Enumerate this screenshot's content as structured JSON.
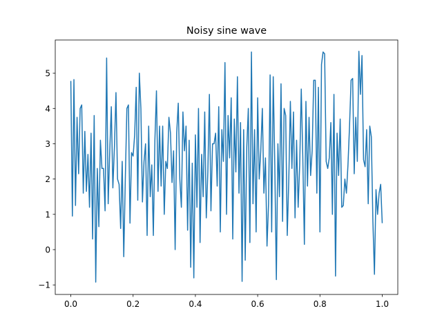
{
  "chart_data": {
    "type": "line",
    "title": "Noisy sine wave",
    "color": "#1f77b4",
    "x": [
      0,
      0.005,
      0.01,
      0.015,
      0.02,
      0.025,
      0.03,
      0.035,
      0.04,
      0.045,
      0.05,
      0.055,
      0.06,
      0.065,
      0.07,
      0.075,
      0.08,
      0.085,
      0.09,
      0.095,
      0.1,
      0.105,
      0.11,
      0.115,
      0.12,
      0.125,
      0.13,
      0.135,
      0.14,
      0.145,
      0.15,
      0.155,
      0.16,
      0.165,
      0.17,
      0.175,
      0.18,
      0.185,
      0.19,
      0.195,
      0.2,
      0.205,
      0.21,
      0.215,
      0.22,
      0.225,
      0.23,
      0.235,
      0.24,
      0.245,
      0.25,
      0.255,
      0.26,
      0.265,
      0.27,
      0.275,
      0.28,
      0.285,
      0.29,
      0.295,
      0.3,
      0.305,
      0.31,
      0.315,
      0.32,
      0.325,
      0.33,
      0.335,
      0.34,
      0.345,
      0.35,
      0.355,
      0.36,
      0.365,
      0.37,
      0.375,
      0.38,
      0.385,
      0.39,
      0.395,
      0.4,
      0.405,
      0.41,
      0.415,
      0.42,
      0.425,
      0.43,
      0.435,
      0.44,
      0.445,
      0.45,
      0.455,
      0.46,
      0.465,
      0.47,
      0.475,
      0.48,
      0.485,
      0.49,
      0.495,
      0.5,
      0.505,
      0.51,
      0.515,
      0.52,
      0.525,
      0.53,
      0.535,
      0.54,
      0.545,
      0.55,
      0.555,
      0.56,
      0.565,
      0.57,
      0.575,
      0.58,
      0.585,
      0.59,
      0.595,
      0.6,
      0.605,
      0.61,
      0.615,
      0.62,
      0.625,
      0.63,
      0.635,
      0.64,
      0.645,
      0.65,
      0.655,
      0.66,
      0.665,
      0.67,
      0.675,
      0.68,
      0.685,
      0.69,
      0.695,
      0.7,
      0.705,
      0.71,
      0.715,
      0.72,
      0.725,
      0.73,
      0.735,
      0.74,
      0.745,
      0.75,
      0.755,
      0.76,
      0.765,
      0.77,
      0.775,
      0.78,
      0.785,
      0.79,
      0.795,
      0.8,
      0.805,
      0.81,
      0.815,
      0.82,
      0.825,
      0.83,
      0.835,
      0.84,
      0.845,
      0.85,
      0.855,
      0.86,
      0.865,
      0.87,
      0.875,
      0.88,
      0.885,
      0.89,
      0.895,
      0.9,
      0.905,
      0.91,
      0.915,
      0.92,
      0.925,
      0.93,
      0.935,
      0.94,
      0.945,
      0.95,
      0.955,
      0.96,
      0.965,
      0.97,
      0.975,
      0.98,
      0.985,
      0.99,
      0.995,
      1
    ],
    "values": [
      4.78,
      0.95,
      4.82,
      1.25,
      3.75,
      2.15,
      4.0,
      4.1,
      1.6,
      3.35,
      1.65,
      2.7,
      1.2,
      3.3,
      0.3,
      3.8,
      -0.92,
      2.3,
      0.65,
      3.1,
      2.3,
      2.3,
      1.1,
      5.43,
      1.3,
      2.8,
      4.05,
      1.75,
      2.9,
      4.45,
      2.0,
      1.85,
      0.6,
      2.5,
      -0.2,
      2.0,
      4.0,
      4.1,
      0.75,
      2.75,
      2.65,
      3.25,
      4.6,
      1.4,
      5.0,
      4.0,
      1.35,
      2.5,
      3.0,
      0.4,
      3.5,
      1.5,
      2.4,
      0.4,
      3.1,
      4.5,
      1.65,
      3.5,
      1.8,
      3.5,
      1.0,
      2.5,
      2.3,
      3.75,
      3.3,
      1.9,
      2.8,
      0.0,
      3.3,
      4.15,
      2.0,
      1.2,
      3.9,
      2.8,
      3.5,
      0.55,
      3.1,
      -0.5,
      2.45,
      -0.8,
      3.25,
      1.2,
      4.0,
      0.2,
      2.7,
      1.5,
      3.9,
      0.9,
      2.2,
      4.4,
      1.1,
      3.0,
      3.0,
      3.3,
      1.8,
      4.05,
      0.5,
      3.4,
      2.5,
      5.3,
      1.0,
      3.8,
      2.6,
      4.3,
      0.3,
      3.7,
      2.2,
      4.9,
      1.6,
      3.6,
      -0.9,
      3.4,
      -0.3,
      2.9,
      4.0,
      0.2,
      5.6,
      1.3,
      3.4,
      0.5,
      4.3,
      2.0,
      2.8,
      4.0,
      1.6,
      2.6,
      0.1,
      1.3,
      4.95,
      0.5,
      4.9,
      2.4,
      -0.85,
      3.0,
      1.5,
      4.7,
      0.8,
      4.0,
      3.8,
      0.4,
      2.0,
      4.2,
      2.3,
      3.9,
      0.9,
      3.1,
      1.2,
      2.4,
      4.55,
      2.6,
      0.15,
      4.2,
      1.8,
      3.75,
      2.1,
      2.8,
      4.8,
      4.8,
      1.6,
      4.6,
      0.5,
      5.25,
      5.6,
      5.55,
      2.5,
      2.3,
      2.6,
      3.6,
      1.0,
      4.4,
      -0.75,
      3.3,
      2.1,
      3.7,
      1.2,
      1.25,
      2.0,
      1.6,
      2.4,
      3.5,
      4.8,
      4.85,
      2.15,
      3.75,
      2.5,
      5.62,
      4.4,
      5.5,
      2.55,
      2.35,
      3.4,
      1.3,
      3.5,
      3.2,
      0.8,
      -0.7,
      1.7,
      1.0,
      1.6,
      1.85,
      0.75
    ],
    "xlim": [
      -0.05,
      1.05
    ],
    "ylim": [
      -1.27,
      5.94
    ],
    "xticks": [
      {
        "value": 0,
        "label": "0.0"
      },
      {
        "value": 0.2,
        "label": "0.2"
      },
      {
        "value": 0.4,
        "label": "0.4"
      },
      {
        "value": 0.6,
        "label": "0.6"
      },
      {
        "value": 0.8,
        "label": "0.8"
      },
      {
        "value": 1,
        "label": "1.0"
      }
    ],
    "yticks": [
      {
        "value": -1,
        "label": "−1"
      },
      0,
      1,
      2,
      3,
      4,
      5
    ]
  }
}
